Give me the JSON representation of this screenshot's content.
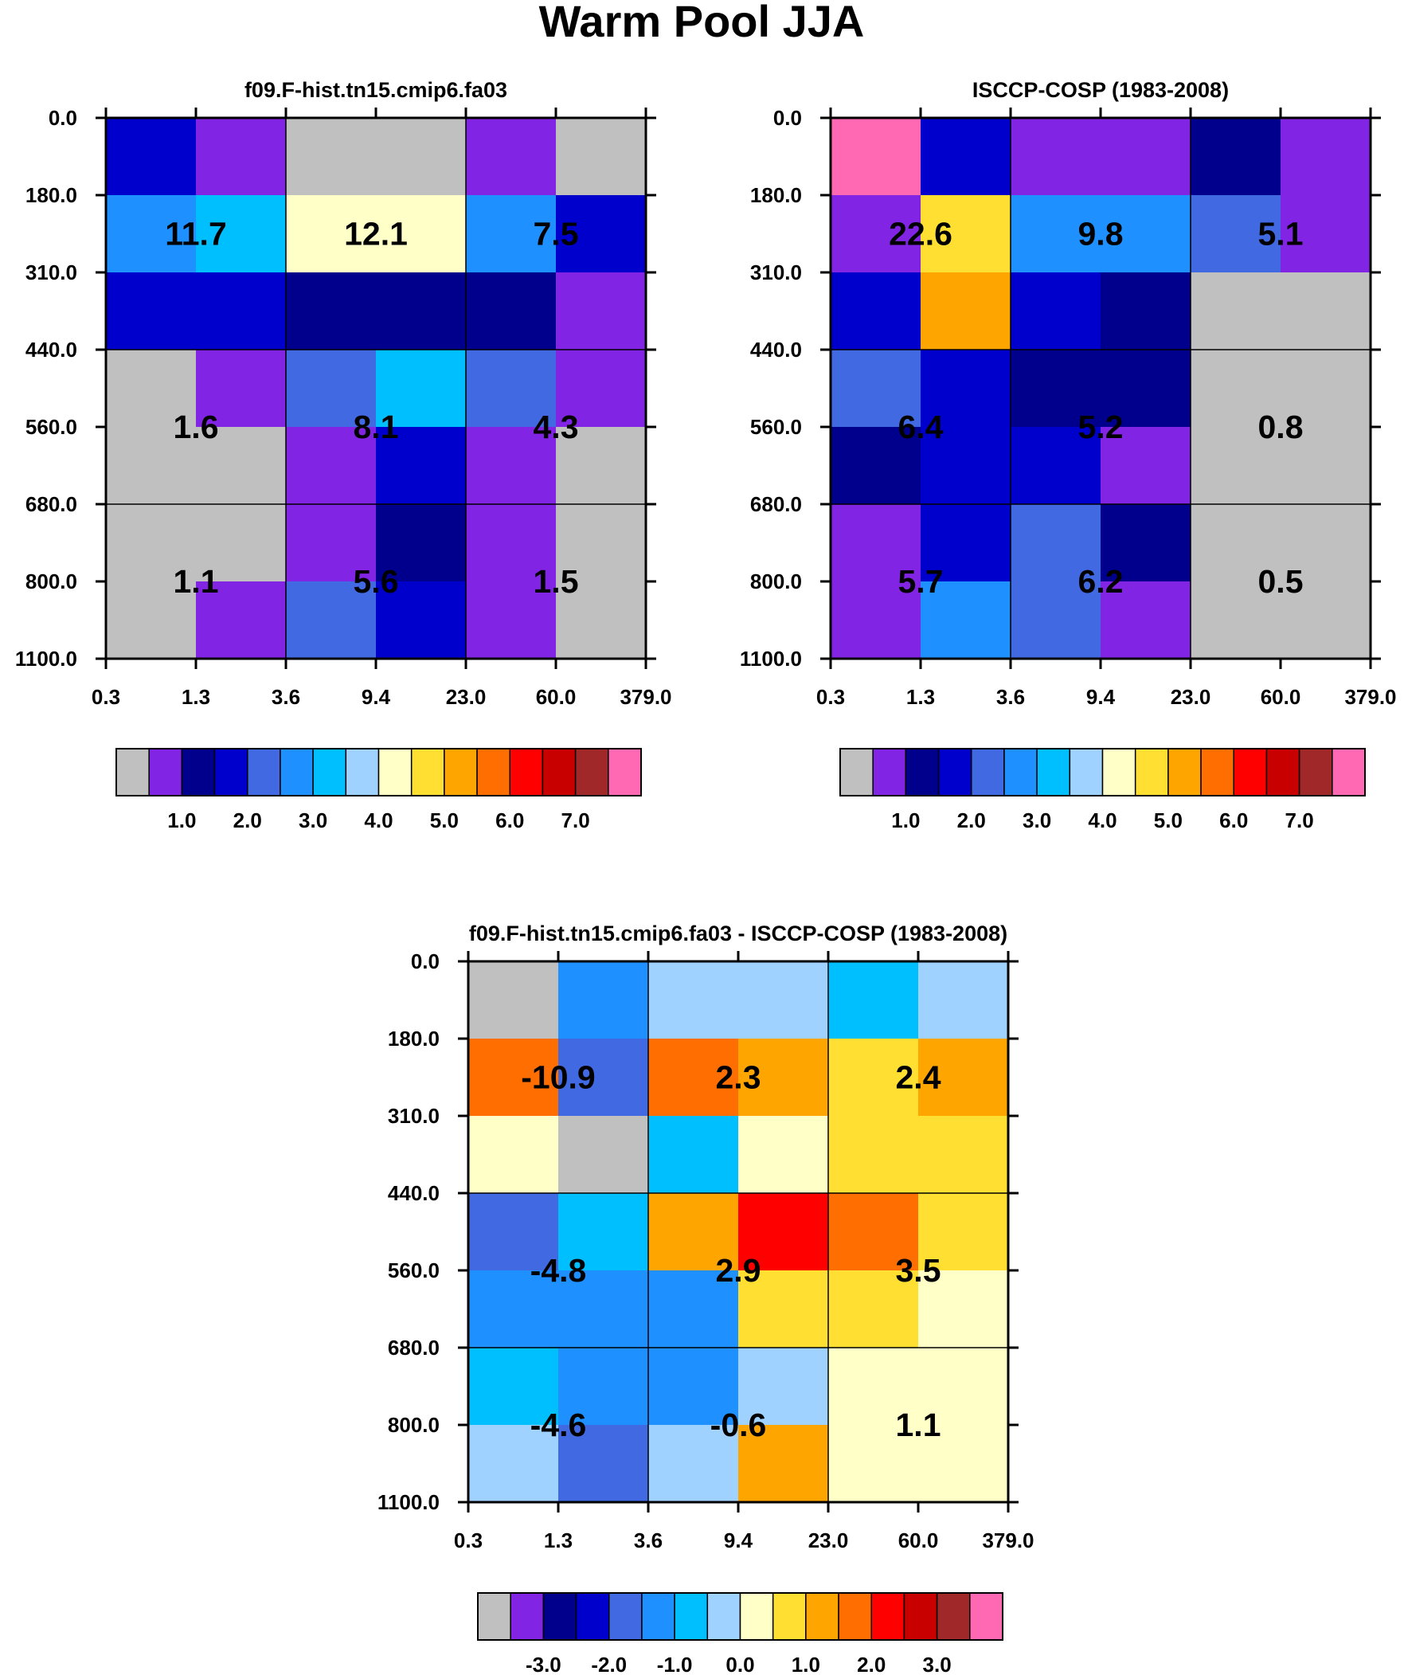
{
  "figure_title": "Warm Pool JJA",
  "x_tick_labels": [
    "0.3",
    "1.3",
    "3.6",
    "9.4",
    "23.0",
    "60.0",
    "379.0"
  ],
  "y_tick_labels": [
    "0.0",
    "180.0",
    "310.0",
    "440.0",
    "560.0",
    "680.0",
    "800.0",
    "1100.0"
  ],
  "palette": {
    "gray": "#C0C0C0",
    "purple": "#8224E3",
    "navy": "#00008C",
    "blue": "#0000CD",
    "royal": "#4169E1",
    "dodger": "#1E90FF",
    "sky": "#00BFFF",
    "light_sky": "#A0D2FF",
    "cream": "#FFFFC8",
    "yellow": "#FFE032",
    "orange": "#FFA500",
    "dark_orange": "#FF6E00",
    "red": "#FF0000",
    "crimson": "#C80000",
    "brown": "#A02828",
    "pink": "#FF69B4"
  },
  "colorbar_order": [
    "gray",
    "purple",
    "navy",
    "blue",
    "royal",
    "dodger",
    "sky",
    "light_sky",
    "cream",
    "yellow",
    "orange",
    "dark_orange",
    "red",
    "crimson",
    "brown",
    "pink"
  ],
  "chart_data": [
    {
      "type": "heatmap",
      "title": "f09.F-hist.tn15.cmip6.fa03",
      "xlabel": "",
      "ylabel": "",
      "x_edges": [
        "0.3",
        "1.3",
        "3.6",
        "9.4",
        "23.0",
        "60.0",
        "379.0"
      ],
      "y_edges": [
        "0.0",
        "180.0",
        "310.0",
        "440.0",
        "560.0",
        "680.0",
        "800.0",
        "1100.0"
      ],
      "cells": [
        [
          "blue",
          "purple",
          "gray",
          "gray",
          "purple",
          "gray"
        ],
        [
          "dodger",
          "sky",
          "cream",
          "cream",
          "dodger",
          "blue"
        ],
        [
          "blue",
          "blue",
          "navy",
          "navy",
          "navy",
          "purple"
        ],
        [
          "gray",
          "purple",
          "royal",
          "sky",
          "royal",
          "purple"
        ],
        [
          "gray",
          "gray",
          "purple",
          "blue",
          "purple",
          "gray"
        ],
        [
          "gray",
          "gray",
          "purple",
          "navy",
          "purple",
          "gray"
        ],
        [
          "gray",
          "purple",
          "royal",
          "blue",
          "purple",
          "gray"
        ]
      ],
      "box_labels": [
        [
          "11.7",
          "12.1",
          "7.5"
        ],
        [
          "1.6",
          "8.1",
          "4.3"
        ],
        [
          "1.1",
          "5.6",
          "1.5"
        ]
      ],
      "colorbar_labels": [
        "1.0",
        "2.0",
        "3.0",
        "4.0",
        "5.0",
        "6.0",
        "7.0"
      ]
    },
    {
      "type": "heatmap",
      "title": "ISCCP-COSP (1983-2008)",
      "xlabel": "",
      "ylabel": "",
      "x_edges": [
        "0.3",
        "1.3",
        "3.6",
        "9.4",
        "23.0",
        "60.0",
        "379.0"
      ],
      "y_edges": [
        "0.0",
        "180.0",
        "310.0",
        "440.0",
        "560.0",
        "680.0",
        "800.0",
        "1100.0"
      ],
      "cells": [
        [
          "pink",
          "blue",
          "purple",
          "purple",
          "navy",
          "purple"
        ],
        [
          "purple",
          "yellow",
          "dodger",
          "dodger",
          "royal",
          "purple"
        ],
        [
          "blue",
          "orange",
          "blue",
          "navy",
          "gray",
          "gray"
        ],
        [
          "royal",
          "blue",
          "navy",
          "navy",
          "gray",
          "gray"
        ],
        [
          "navy",
          "blue",
          "blue",
          "purple",
          "gray",
          "gray"
        ],
        [
          "purple",
          "blue",
          "royal",
          "navy",
          "gray",
          "gray"
        ],
        [
          "purple",
          "dodger",
          "royal",
          "purple",
          "gray",
          "gray"
        ]
      ],
      "box_labels": [
        [
          "22.6",
          "9.8",
          "5.1"
        ],
        [
          "6.4",
          "5.2",
          "0.8"
        ],
        [
          "5.7",
          "6.2",
          "0.5"
        ]
      ],
      "colorbar_labels": [
        "1.0",
        "2.0",
        "3.0",
        "4.0",
        "5.0",
        "6.0",
        "7.0"
      ]
    },
    {
      "type": "heatmap",
      "title": "f09.F-hist.tn15.cmip6.fa03 - ISCCP-COSP (1983-2008)",
      "xlabel": "",
      "ylabel": "",
      "x_edges": [
        "0.3",
        "1.3",
        "3.6",
        "9.4",
        "23.0",
        "60.0",
        "379.0"
      ],
      "y_edges": [
        "0.0",
        "180.0",
        "310.0",
        "440.0",
        "560.0",
        "680.0",
        "800.0",
        "1100.0"
      ],
      "cells": [
        [
          "gray",
          "dodger",
          "light_sky",
          "light_sky",
          "sky",
          "light_sky"
        ],
        [
          "dark_orange",
          "royal",
          "dark_orange",
          "orange",
          "yellow",
          "orange"
        ],
        [
          "cream",
          "gray",
          "sky",
          "cream",
          "yellow",
          "yellow"
        ],
        [
          "royal",
          "sky",
          "orange",
          "red",
          "dark_orange",
          "yellow"
        ],
        [
          "dodger",
          "dodger",
          "dodger",
          "yellow",
          "yellow",
          "cream"
        ],
        [
          "sky",
          "dodger",
          "dodger",
          "light_sky",
          "cream",
          "cream"
        ],
        [
          "light_sky",
          "royal",
          "light_sky",
          "orange",
          "cream",
          "cream"
        ]
      ],
      "box_labels": [
        [
          "-10.9",
          "2.3",
          "2.4"
        ],
        [
          "-4.8",
          "2.9",
          "3.5"
        ],
        [
          "-4.6",
          "-0.6",
          "1.1"
        ]
      ],
      "colorbar_labels": [
        "-3.0",
        "-2.0",
        "-1.0",
        "0.0",
        "1.0",
        "2.0",
        "3.0"
      ]
    }
  ]
}
